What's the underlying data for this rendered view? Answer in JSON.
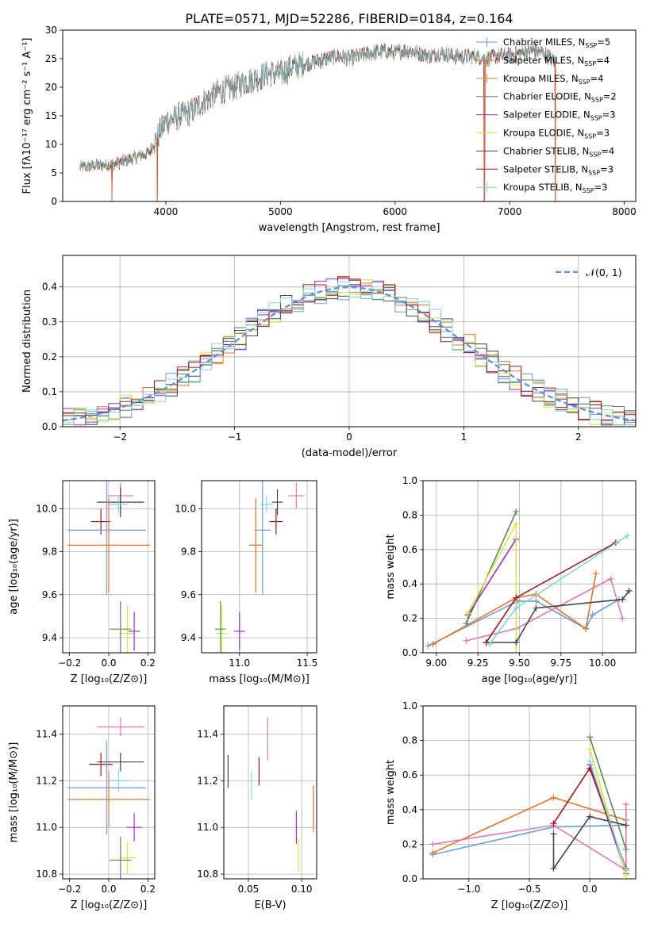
{
  "title": "PLATE=0571, MJD=52286, FIBERID=0184, z=0.164",
  "colors": {
    "chabrier_miles": "#6b9cdb",
    "salpeter_miles": "#e6732c",
    "kroupa_miles": "#d98a2e",
    "chabrier_elodie": "#5a8a5a",
    "salpeter_elodie": "#9b2fbf",
    "kroupa_elodie": "#d7e83a",
    "chabrier_stelib": "#444444",
    "salpeter_stelib": "#a01818",
    "kroupa_stelib": "#7fd6e0",
    "pink": "#e07aad",
    "grid": "#b0b0b0",
    "normal": "#5b8fd8"
  },
  "chart_data": [
    {
      "id": "spectrum",
      "type": "line",
      "xlabel": "wavelength [Angstrom, rest frame]",
      "ylabel": "Flux [fλ10⁻¹⁷ erg cm⁻² s⁻¹ A⁻¹]",
      "xlim": [
        3100,
        8100
      ],
      "ylim": [
        0,
        30
      ],
      "xticks": [
        "4000",
        "5000",
        "6000",
        "7000",
        "8000"
      ],
      "yticks": [
        "0",
        "5",
        "10",
        "15",
        "20",
        "25",
        "30"
      ],
      "grid": false,
      "legend_position": "top-right",
      "legend": [
        "Chabrier MILES, N_SSP=5",
        "Salpeter MILES, N_SSP=4",
        "Kroupa MILES, N_SSP=4",
        "Chabrier ELODIE, N_SSP=2",
        "Salpeter ELODIE, N_SSP=3",
        "Kroupa ELODIE, N_SSP=3",
        "Chabrier STELIB, N_SSP=4",
        "Salpeter STELIB, N_SSP=3",
        "Kroupa STELIB, N_SSP=3"
      ],
      "continuum": {
        "x": [
          3250,
          3400,
          3550,
          3700,
          3850,
          3920,
          4000,
          4100,
          4200,
          4300,
          4400,
          4500,
          4600,
          4700,
          4800,
          4900,
          5000,
          5100,
          5200,
          5300,
          5400,
          5500,
          5600,
          5700,
          5800,
          5900,
          6000,
          6100,
          6200,
          6300,
          6400,
          6500,
          6600,
          6700,
          6800,
          6900,
          7000,
          7100,
          7200,
          7300,
          7400
        ],
        "y": [
          6,
          6.3,
          6.5,
          7.5,
          8.5,
          11,
          14,
          14.8,
          15.5,
          17,
          18.5,
          19.5,
          20,
          21,
          21.5,
          22.5,
          22.3,
          23.5,
          24,
          24.5,
          25,
          25.5,
          25,
          25.5,
          26,
          26.3,
          26,
          26.5,
          26,
          25.5,
          26,
          25.5,
          25.3,
          25.5,
          25,
          25.5,
          25.5,
          26,
          26.5,
          26,
          24.5
        ]
      },
      "spikes_to_zero": [
        3530,
        3925,
        6780,
        7400
      ]
    },
    {
      "id": "residuals",
      "type": "histogram",
      "xlabel": "(data-model)/error",
      "ylabel": "Normed distribution",
      "xlim": [
        -2.5,
        2.5
      ],
      "ylim": [
        0,
        0.49
      ],
      "xticks": [
        "−2",
        "−1",
        "0",
        "1",
        "2"
      ],
      "yticks": [
        "0.0",
        "0.1",
        "0.2",
        "0.3",
        "0.4"
      ],
      "grid": true,
      "legend_position": "top-right",
      "legend": [
        "𝒩(0, 1)"
      ],
      "bin_width": 0.1
    },
    {
      "id": "age-vs-Z",
      "type": "errorbar",
      "xlabel": "Z [log₁₀(Z/Z⊙)]",
      "ylabel": "age  [log₁₀(age/yr)]",
      "xlim": [
        -0.235,
        0.235
      ],
      "ylim": [
        9.33,
        10.13
      ],
      "xticks": [
        "−0.2",
        "0.0",
        "0.2"
      ],
      "yticks": [
        "9.4",
        "9.6",
        "9.8",
        "10.0"
      ],
      "grid": true,
      "points": [
        {
          "c": "pink",
          "x": 0.06,
          "y": 10.06,
          "xerr": 0.065,
          "yerr": 0.06
        },
        {
          "c": "chabrier_stelib",
          "x": 0.06,
          "y": 10.03,
          "xerr": 0.12,
          "yerr": 0.07
        },
        {
          "c": "kroupa_stelib",
          "x": 0.05,
          "y": 10.02,
          "xerr": 0.05,
          "yerr": 0.04
        },
        {
          "c": "salpeter_stelib",
          "x": -0.04,
          "y": 9.94,
          "xerr": 0.05,
          "yerr": 0.06
        },
        {
          "c": "chabrier_miles",
          "x": -0.01,
          "y": 9.9,
          "xerr": 0.2,
          "yerr": 0.3
        },
        {
          "c": "salpeter_miles",
          "x": 0.0,
          "y": 9.83,
          "xerr": 0.21,
          "yerr": 0.22
        },
        {
          "c": "kroupa_elodie",
          "x": 0.095,
          "y": 9.42,
          "xerr": 0.04,
          "yerr": 0.13
        },
        {
          "c": "chabrier_elodie",
          "x": 0.06,
          "y": 9.44,
          "xerr": 0.055,
          "yerr": 0.13
        },
        {
          "c": "salpeter_elodie",
          "x": 0.13,
          "y": 9.43,
          "xerr": 0.03,
          "yerr": 0.09
        }
      ]
    },
    {
      "id": "age-vs-mass",
      "type": "errorbar",
      "xlabel": "mass [log₁₀(M/M⊙)]",
      "ylabel": "",
      "xlim": [
        10.72,
        11.57
      ],
      "ylim": [
        9.33,
        10.13
      ],
      "xticks": [
        "11.0",
        "11.5"
      ],
      "yticks": [
        "9.4",
        "9.6",
        "9.8",
        "10.0"
      ],
      "grid": true,
      "points": [
        {
          "c": "pink",
          "x": 11.42,
          "y": 10.06,
          "xerr": 0.06,
          "yerr": 0.06
        },
        {
          "c": "chabrier_stelib",
          "x": 11.28,
          "y": 10.03,
          "xerr": 0.04,
          "yerr": 0.06
        },
        {
          "c": "kroupa_stelib",
          "x": 11.2,
          "y": 10.02,
          "xerr": 0.05,
          "yerr": 0.04
        },
        {
          "c": "salpeter_stelib",
          "x": 11.27,
          "y": 9.94,
          "xerr": 0.05,
          "yerr": 0.06
        },
        {
          "c": "chabrier_miles",
          "x": 11.17,
          "y": 9.9,
          "xerr": 0.06,
          "yerr": 0.3
        },
        {
          "c": "salpeter_miles",
          "x": 11.12,
          "y": 9.83,
          "xerr": 0.05,
          "yerr": 0.22
        },
        {
          "c": "kroupa_elodie",
          "x": 10.87,
          "y": 9.42,
          "xerr": 0.04,
          "yerr": 0.13
        },
        {
          "c": "chabrier_elodie",
          "x": 10.86,
          "y": 9.44,
          "xerr": 0.04,
          "yerr": 0.13
        },
        {
          "c": "salpeter_elodie",
          "x": 11.0,
          "y": 9.43,
          "xerr": 0.04,
          "yerr": 0.09
        }
      ]
    },
    {
      "id": "weight-vs-age",
      "type": "line",
      "xlabel": "age  [log₁₀(age/yr)]",
      "ylabel": "mass weight",
      "xlim": [
        8.92,
        10.2
      ],
      "ylim": [
        0,
        1
      ],
      "xticks": [
        "9.00",
        "9.25",
        "9.50",
        "9.75",
        "10.00"
      ],
      "yticks": [
        "0.0",
        "0.2",
        "0.4",
        "0.6",
        "0.8",
        "1.0"
      ],
      "grid": true,
      "series": [
        {
          "c": "chabrier_miles",
          "x": [
            8.95,
            9.49,
            9.6,
            9.9,
            9.94,
            10.1
          ],
          "y": [
            0.04,
            0.3,
            0.3,
            0.14,
            0.22,
            0.31
          ]
        },
        {
          "c": "salpeter_miles",
          "x": [
            8.98,
            9.48,
            9.6,
            9.9,
            9.96
          ],
          "y": [
            0.05,
            0.32,
            0.34,
            0.14,
            0.46
          ]
        },
        {
          "c": "pink",
          "x": [
            9.18,
            9.48,
            10.05,
            10.12
          ],
          "y": [
            0.07,
            0.14,
            0.43,
            0.2
          ]
        },
        {
          "c": "chabrier_elodie",
          "x": [
            9.18,
            9.48
          ],
          "y": [
            0.17,
            0.82
          ]
        },
        {
          "c": "salpeter_elodie",
          "x": [
            9.19,
            9.48
          ],
          "y": [
            0.22,
            0.66
          ]
        },
        {
          "c": "kroupa_elodie",
          "x": [
            9.19,
            9.48,
            9.48
          ],
          "y": [
            0.23,
            0.75,
            0.0
          ]
        },
        {
          "c": "chabrier_stelib",
          "x": [
            9.3,
            9.48,
            9.6,
            10.12,
            10.16
          ],
          "y": [
            0.06,
            0.06,
            0.26,
            0.31,
            0.36
          ]
        },
        {
          "c": "salpeter_stelib",
          "x": [
            9.3,
            9.48,
            10.08
          ],
          "y": [
            0.06,
            0.32,
            0.64
          ]
        },
        {
          "c": "kroupa_stelib",
          "x": [
            9.32,
            9.48,
            10.15
          ],
          "y": [
            0.05,
            0.26,
            0.68
          ]
        }
      ]
    },
    {
      "id": "mass-vs-Z",
      "type": "errorbar",
      "xlabel": "Z [log₁₀(Z/Z⊙)]",
      "ylabel": "mass [log₁₀(M/M⊙)]",
      "xlim": [
        -0.235,
        0.235
      ],
      "ylim": [
        10.78,
        11.52
      ],
      "xticks": [
        "−0.2",
        "0.0",
        "0.2"
      ],
      "yticks": [
        "10.8",
        "11.0",
        "11.2",
        "11.4"
      ],
      "grid": true,
      "points": [
        {
          "c": "pink",
          "x": 0.06,
          "y": 11.43,
          "xerr": 0.12,
          "yerr": 0.04
        },
        {
          "c": "chabrier_stelib",
          "x": 0.06,
          "y": 11.28,
          "xerr": 0.12,
          "yerr": 0.04
        },
        {
          "c": "salpeter_stelib",
          "x": -0.04,
          "y": 11.27,
          "xerr": 0.06,
          "yerr": 0.05
        },
        {
          "c": "kroupa_stelib",
          "x": 0.05,
          "y": 11.2,
          "xerr": 0.05,
          "yerr": 0.05
        },
        {
          "c": "chabrier_miles",
          "x": -0.01,
          "y": 11.17,
          "xerr": 0.2,
          "yerr": 0.2
        },
        {
          "c": "salpeter_miles",
          "x": 0.0,
          "y": 11.12,
          "xerr": 0.21,
          "yerr": 0.12
        },
        {
          "c": "salpeter_elodie",
          "x": 0.13,
          "y": 11.0,
          "xerr": 0.04,
          "yerr": 0.06
        },
        {
          "c": "kroupa_elodie",
          "x": 0.095,
          "y": 10.87,
          "xerr": 0.04,
          "yerr": 0.07
        },
        {
          "c": "chabrier_elodie",
          "x": 0.06,
          "y": 10.86,
          "xerr": 0.055,
          "yerr": 0.1
        }
      ]
    },
    {
      "id": "mass-vs-ebv",
      "type": "errorbar",
      "xlabel": "E(B-V)",
      "ylabel": "",
      "xlim": [
        0.027,
        0.114
      ],
      "ylim": [
        10.78,
        11.52
      ],
      "xticks": [
        "0.05",
        "0.10"
      ],
      "yticks": [
        "10.8",
        "11.0",
        "11.2",
        "11.4"
      ],
      "grid": true,
      "points": [
        {
          "c": "pink",
          "x": 0.068,
          "y": 11.38,
          "xerr": 0,
          "yerr": 0.09
        },
        {
          "c": "chabrier_stelib",
          "x": 0.031,
          "y": 11.24,
          "xerr": 0,
          "yerr": 0.07
        },
        {
          "c": "salpeter_stelib",
          "x": 0.06,
          "y": 11.24,
          "xerr": 0,
          "yerr": 0.06
        },
        {
          "c": "kroupa_stelib",
          "x": 0.053,
          "y": 11.18,
          "xerr": 0,
          "yerr": 0.06
        },
        {
          "c": "salpeter_elodie",
          "x": 0.095,
          "y": 11.0,
          "xerr": 0,
          "yerr": 0.07
        },
        {
          "c": "salpeter_miles",
          "x": 0.111,
          "y": 11.08,
          "xerr": 0,
          "yerr": 0.1
        },
        {
          "c": "kroupa_elodie",
          "x": 0.097,
          "y": 10.88,
          "xerr": 0,
          "yerr": 0.07
        }
      ]
    },
    {
      "id": "weight-vs-Z",
      "type": "line",
      "xlabel": "Z [log₁₀(Z/Z⊙)]",
      "ylabel": "mass weight",
      "xlim": [
        -1.38,
        0.38
      ],
      "ylim": [
        0,
        1
      ],
      "xticks": [
        "−1.0",
        "−0.5",
        "0.0"
      ],
      "yticks": [
        "0.0",
        "0.2",
        "0.4",
        "0.6",
        "0.8",
        "1.0"
      ],
      "grid": true,
      "series": [
        {
          "c": "chabrier_miles",
          "x": [
            -1.3,
            -0.3,
            0.3
          ],
          "y": [
            0.14,
            0.3,
            0.31
          ]
        },
        {
          "c": "salpeter_miles",
          "x": [
            -1.3,
            -0.3,
            0.3
          ],
          "y": [
            0.15,
            0.47,
            0.34
          ]
        },
        {
          "c": "pink",
          "x": [
            -1.3,
            -0.3,
            0.3,
            0.3
          ],
          "y": [
            0.2,
            0.31,
            0.05,
            0.43
          ]
        },
        {
          "c": "chabrier_elodie",
          "x": [
            0.0,
            0.3
          ],
          "y": [
            0.82,
            0.17
          ]
        },
        {
          "c": "salpeter_elodie",
          "x": [
            0.0,
            0.3
          ],
          "y": [
            0.66,
            0.03
          ]
        },
        {
          "c": "kroupa_elodie",
          "x": [
            0.0,
            0.3
          ],
          "y": [
            0.75,
            0.02
          ]
        },
        {
          "c": "chabrier_stelib",
          "x": [
            -0.3,
            -0.3,
            0.0,
            0.3
          ],
          "y": [
            0.26,
            0.06,
            0.36,
            0.31
          ]
        },
        {
          "c": "salpeter_stelib",
          "x": [
            -0.3,
            0.0,
            0.3
          ],
          "y": [
            0.32,
            0.64,
            0.06
          ]
        },
        {
          "c": "kroupa_stelib",
          "x": [
            0.0,
            0.3
          ],
          "y": [
            0.68,
            0.05
          ]
        }
      ]
    }
  ]
}
